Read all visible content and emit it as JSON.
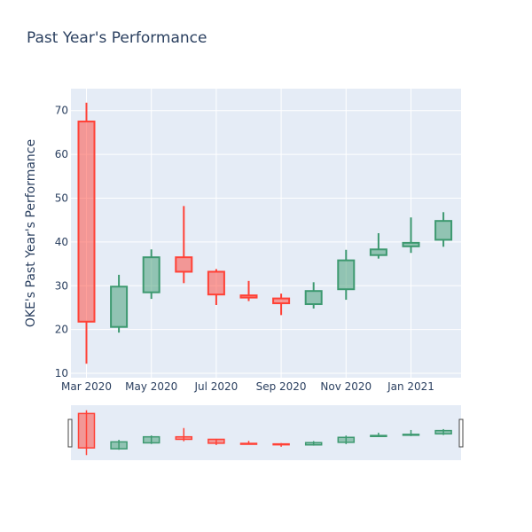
{
  "chart_data": {
    "type": "candlestick",
    "title": "Past Year's Performance",
    "xlabel": "",
    "ylabel": "OKE's Past Year's Performance",
    "ylim": [
      9,
      75
    ],
    "y_ticks": [
      10,
      20,
      30,
      40,
      50,
      60,
      70
    ],
    "x_ticks": [
      "Mar 2020",
      "May 2020",
      "Jul 2020",
      "Sep 2020",
      "Nov 2020",
      "Jan 2021"
    ],
    "categories": [
      "Mar 2020",
      "Apr 2020",
      "May 2020",
      "Jun 2020",
      "Jul 2020",
      "Aug 2020",
      "Sep 2020",
      "Oct 2020",
      "Nov 2020",
      "Dec 2020",
      "Jan 2021",
      "Feb 2021"
    ],
    "series": [
      {
        "open": [
          67.5,
          20.6,
          28.5,
          36.5,
          33.2,
          27.8,
          27.1,
          25.8,
          29.2,
          37.0,
          39.0,
          40.5
        ],
        "high": [
          71.8,
          32.5,
          38.3,
          48.2,
          33.8,
          31.1,
          28.2,
          30.8,
          38.2,
          42.0,
          45.6,
          46.8
        ],
        "low": [
          12.2,
          19.3,
          27.0,
          30.6,
          25.6,
          26.5,
          23.3,
          24.8,
          26.8,
          36.2,
          37.5,
          38.9
        ],
        "close": [
          21.8,
          29.8,
          36.5,
          33.2,
          28.0,
          27.3,
          26.0,
          28.8,
          35.8,
          38.3,
          39.8,
          44.8
        ]
      }
    ],
    "increasing_color": "#3d9970",
    "decreasing_color": "#ff4136",
    "rangeslider": true,
    "grid": true
  }
}
